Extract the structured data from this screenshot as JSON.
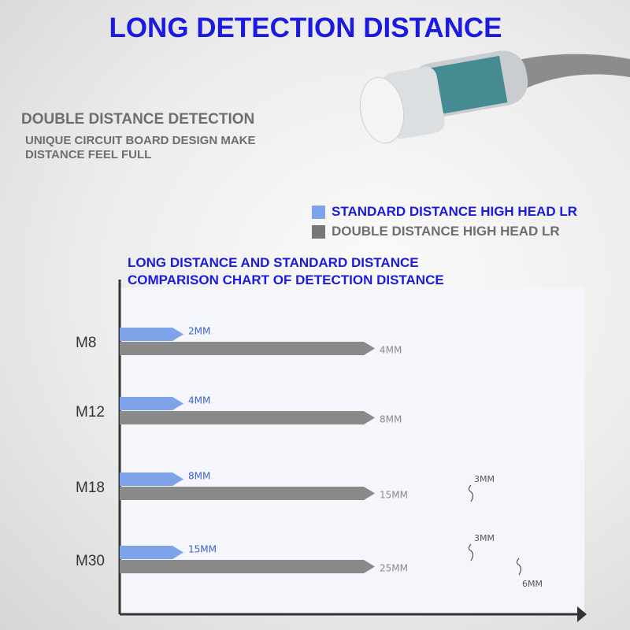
{
  "header": {
    "title": "LONG DETECTION DISTANCE",
    "subtitle": "DOUBLE DISTANCE DETECTION",
    "description": "UNIQUE CIRCUIT BOARD DESIGN MAKE DISTANCE FEEL FULL"
  },
  "product_image": {
    "name": "cylindrical-proximity-sensor"
  },
  "colors": {
    "standard": "#7fa3e8",
    "double": "#8a8a8a",
    "title": "#1a1ae0"
  },
  "chart_data": {
    "type": "bar",
    "orientation": "horizontal",
    "title": "LONG DISTANCE AND STANDARD DISTANCE COMPARISON CHART OF DETECTION DISTANCE",
    "title_line1": "LONG DISTANCE AND STANDARD DISTANCE",
    "title_line2": "COMPARISON CHART OF DETECTION DISTANCE",
    "legend_position": "top",
    "categories": [
      "M8",
      "M12",
      "M18",
      "M30"
    ],
    "series": [
      {
        "name": "STANDARD DISTANCE HIGH HEAD LR",
        "values": [
          2,
          4,
          8,
          15
        ],
        "labels": [
          "2MM",
          "4MM",
          "8MM",
          "15MM"
        ]
      },
      {
        "name": "DOUBLE DISTANCE HIGH HEAD LR",
        "values": [
          4,
          8,
          15,
          25
        ],
        "labels": [
          "4MM",
          "8MM",
          "15MM",
          "25MM"
        ]
      }
    ],
    "axis_breaks": [
      {
        "category": "M18",
        "series": "DOUBLE DISTANCE HIGH HEAD LR",
        "label": "3MM"
      },
      {
        "category": "M30",
        "series": "STANDARD DISTANCE HIGH HEAD LR",
        "label": "3MM"
      },
      {
        "category": "M30",
        "series": "DOUBLE DISTANCE HIGH HEAD LR",
        "label": "6MM"
      }
    ],
    "unit": "MM"
  }
}
